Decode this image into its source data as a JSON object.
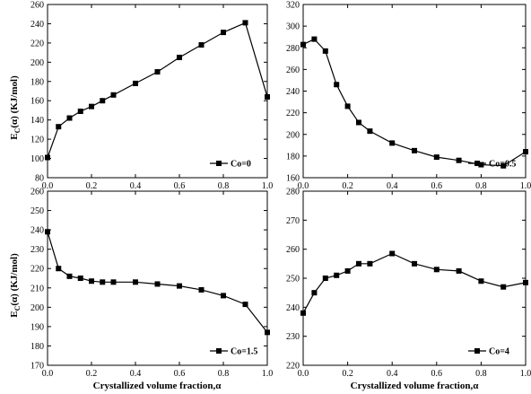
{
  "figure": {
    "ylabel": "E_C(α) (KJ/mol)",
    "ylabel_main": "E",
    "ylabel_sub": "C",
    "ylabel_rest": "(α) (KJ/mol)",
    "xlabel": "Crystallized volume fraction,α"
  },
  "chart_data": [
    {
      "type": "line",
      "legend": "Co=0",
      "legend_position": "bottom-right",
      "xlim": [
        0,
        1.0
      ],
      "ylim": [
        80,
        260
      ],
      "xticks": [
        "0.0",
        "0.2",
        "0.4",
        "0.6",
        "0.8",
        "1.0"
      ],
      "yticks": [
        "80",
        "100",
        "120",
        "140",
        "160",
        "180",
        "200",
        "220",
        "240",
        "260"
      ],
      "x": [
        0.0,
        0.05,
        0.1,
        0.15,
        0.2,
        0.25,
        0.3,
        0.4,
        0.5,
        0.6,
        0.7,
        0.8,
        0.9,
        1.0
      ],
      "y": [
        101,
        133,
        142,
        149,
        154,
        160,
        166,
        178,
        190,
        205,
        218,
        231,
        241,
        164
      ]
    },
    {
      "type": "line",
      "legend": "Co=0.5",
      "legend_position": "bottom-right",
      "xlim": [
        0,
        1.0
      ],
      "ylim": [
        160,
        320
      ],
      "xticks": [
        "0.0",
        "0.2",
        "0.4",
        "0.6",
        "0.8",
        "1.0"
      ],
      "yticks": [
        "160",
        "180",
        "200",
        "220",
        "240",
        "260",
        "280",
        "300",
        "320"
      ],
      "x": [
        0.0,
        0.05,
        0.1,
        0.15,
        0.2,
        0.25,
        0.3,
        0.4,
        0.5,
        0.6,
        0.7,
        0.8,
        0.9,
        1.0
      ],
      "y": [
        283,
        288,
        277,
        246,
        226,
        211,
        203,
        192,
        185,
        179,
        176,
        172,
        171,
        184
      ]
    },
    {
      "type": "line",
      "legend": "Co=1.5",
      "legend_position": "bottom-right",
      "xlim": [
        0,
        1.0
      ],
      "ylim": [
        170,
        260
      ],
      "xticks": [
        "0.0",
        "0.2",
        "0.4",
        "0.6",
        "0.8",
        "1.0"
      ],
      "yticks": [
        "170",
        "180",
        "190",
        "200",
        "210",
        "220",
        "230",
        "240",
        "250",
        "260"
      ],
      "x": [
        0.0,
        0.05,
        0.1,
        0.15,
        0.2,
        0.25,
        0.3,
        0.4,
        0.5,
        0.6,
        0.7,
        0.8,
        0.9,
        1.0
      ],
      "y": [
        239,
        220,
        216,
        215,
        213.5,
        213,
        213,
        213,
        212,
        211,
        209,
        206,
        201.5,
        187
      ]
    },
    {
      "type": "line",
      "legend": "Co=4",
      "legend_position": "bottom-right",
      "xlim": [
        0,
        1.0
      ],
      "ylim": [
        220,
        280
      ],
      "xticks": [
        "0.0",
        "0.2",
        "0.4",
        "0.6",
        "0.8",
        "1.0"
      ],
      "yticks": [
        "220",
        "230",
        "240",
        "250",
        "260",
        "270",
        "280"
      ],
      "x": [
        0.0,
        0.05,
        0.1,
        0.15,
        0.2,
        0.25,
        0.3,
        0.4,
        0.5,
        0.6,
        0.7,
        0.8,
        0.9,
        1.0
      ],
      "y": [
        238,
        245,
        250,
        251,
        252.5,
        255,
        255,
        258.5,
        255,
        253,
        252.5,
        249,
        247,
        248.5
      ]
    }
  ]
}
